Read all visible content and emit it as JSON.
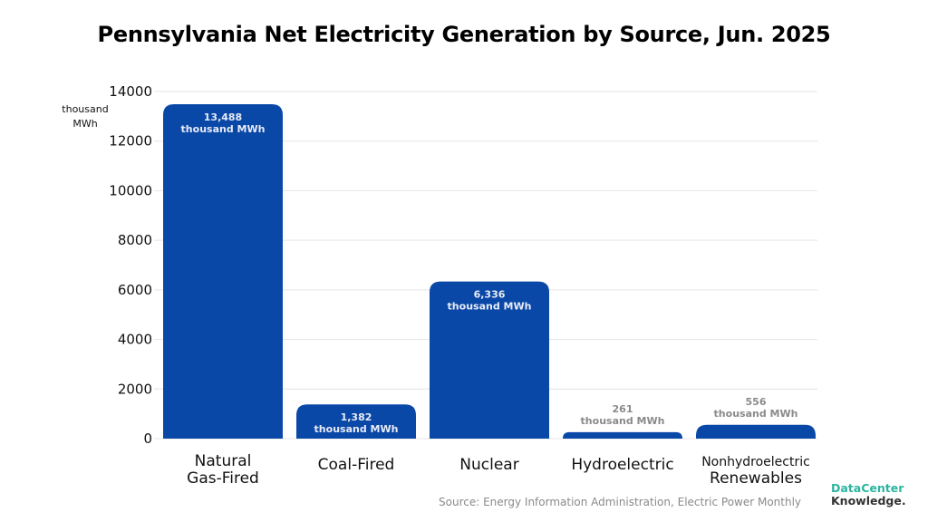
{
  "chart_data": {
    "type": "bar",
    "title": "Pennsylvania Net Electricity Generation by Source, Jun. 2025",
    "ylabel": [
      "thousand",
      "MWh"
    ],
    "xlabel": "",
    "ylim": [
      0,
      14000
    ],
    "yticks": [
      0,
      2000,
      4000,
      6000,
      8000,
      10000,
      12000,
      14000
    ],
    "grid": true,
    "bar_color": "#0a48a8",
    "categories": [
      [
        "Natural",
        "Gas-Fired"
      ],
      [
        "Coal-Fired"
      ],
      [
        "Nuclear"
      ],
      [
        "Hydroelectric"
      ],
      [
        "Nonhydroelectric",
        "Renewables"
      ]
    ],
    "values": [
      13488,
      1382,
      6336,
      261,
      556
    ],
    "data_labels": [
      [
        "13,488",
        "thousand MWh"
      ],
      [
        "1,382",
        "thousand MWh"
      ],
      [
        "6,336",
        "thousand MWh"
      ],
      [
        "261",
        "thousand MWh"
      ],
      [
        "556",
        "thousand MWh"
      ]
    ]
  },
  "footer": {
    "source": "Source: Energy Information Administration, Electric Power Monthly",
    "logo_line1": "DataCenter",
    "logo_line2": "Knowledge."
  }
}
